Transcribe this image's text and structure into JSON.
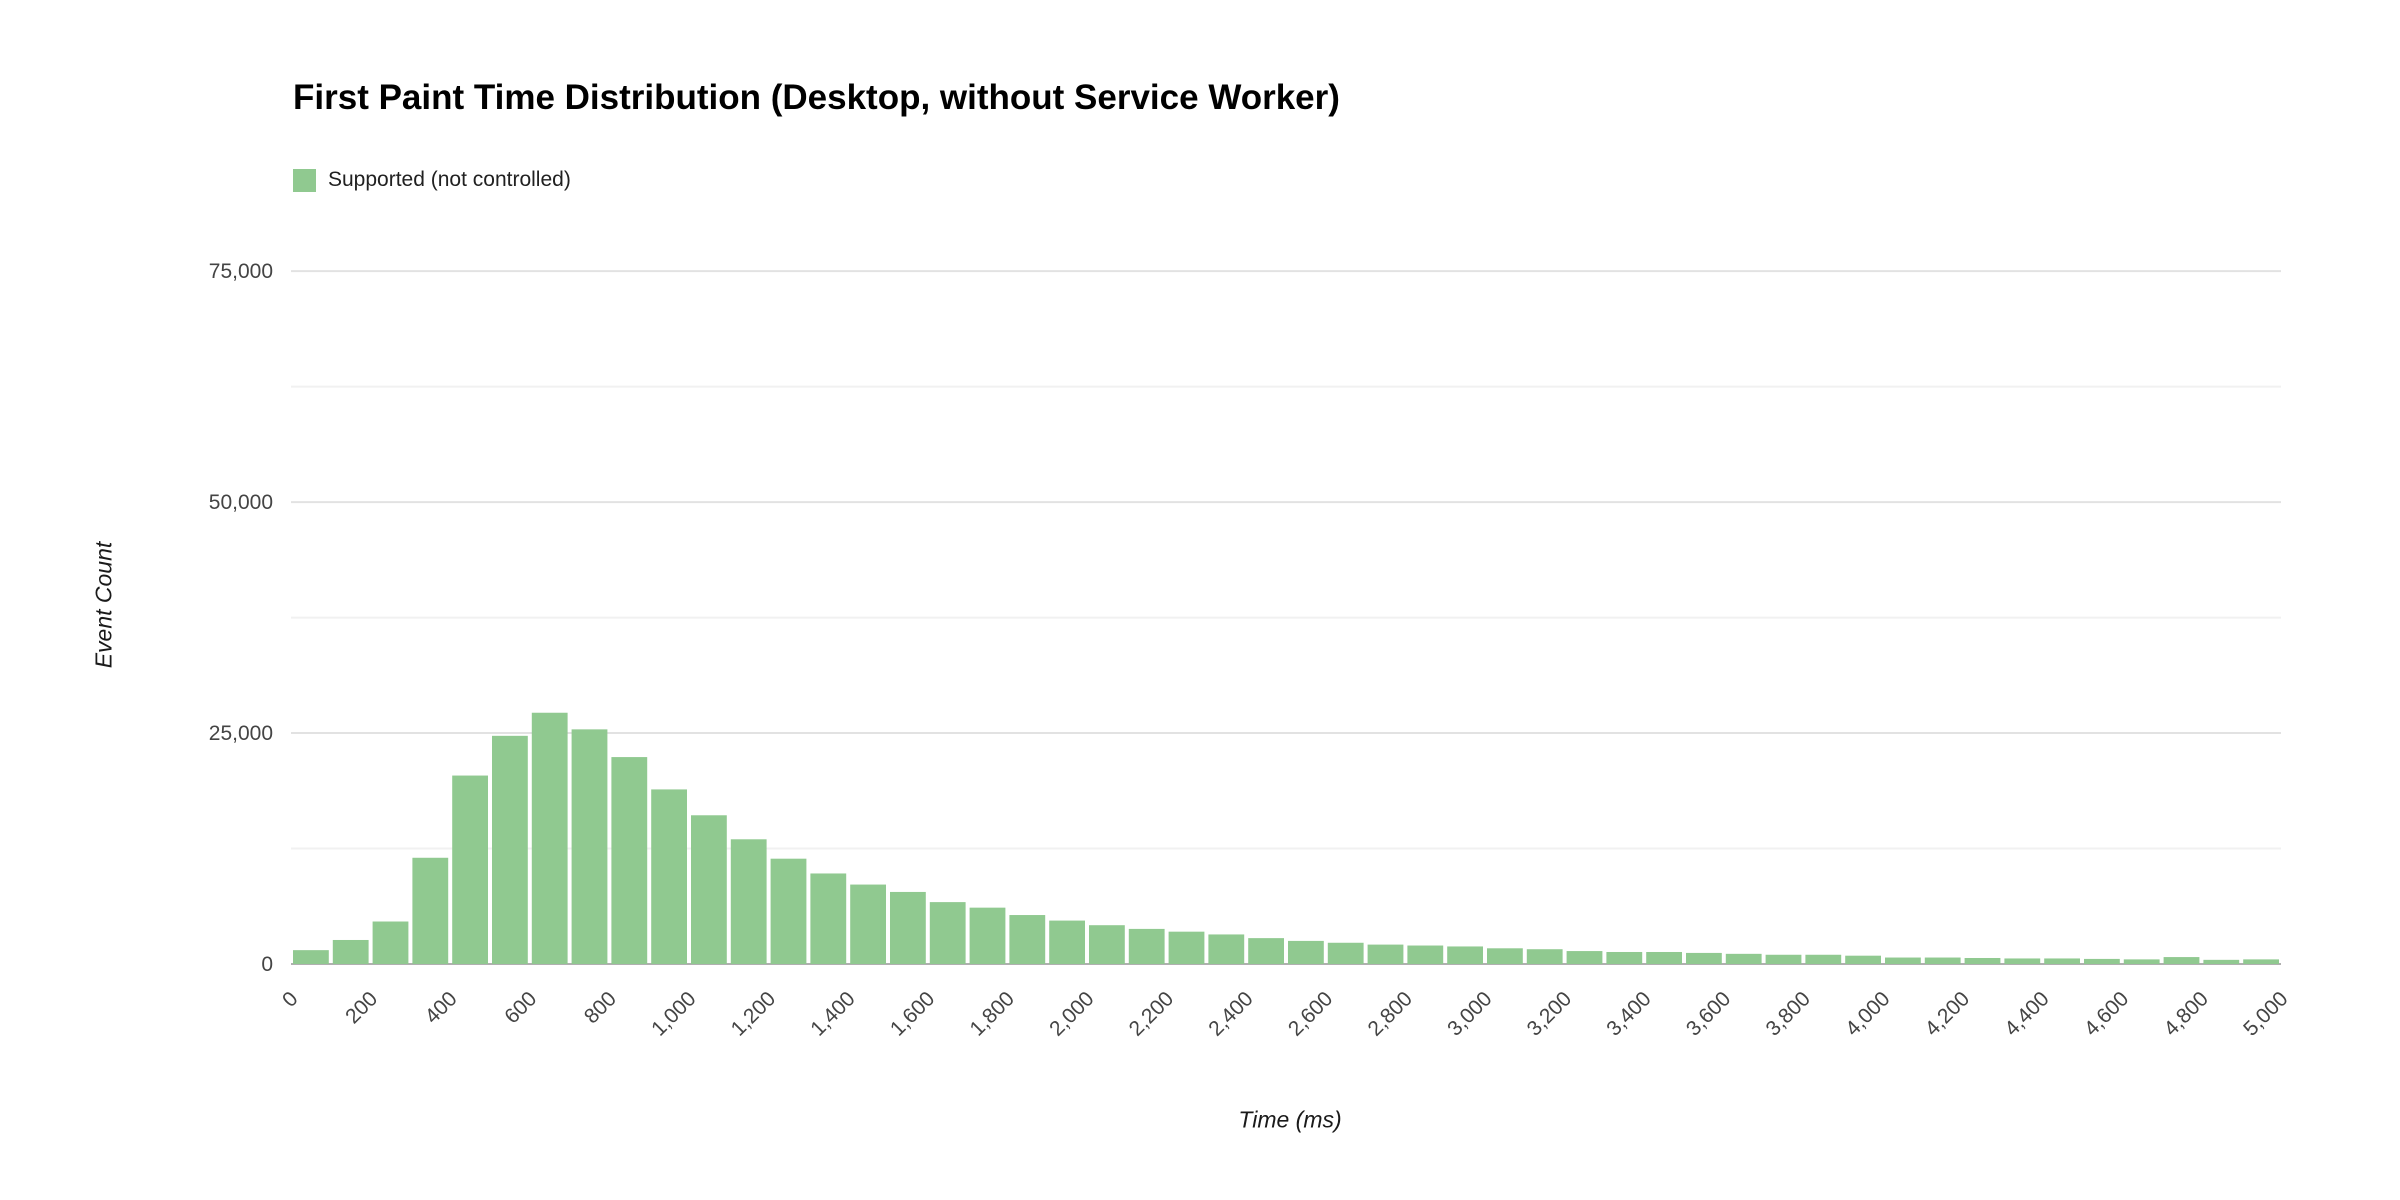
{
  "page": {
    "background": "#ffffff"
  },
  "chart_data": {
    "type": "bar",
    "subtype": "histogram",
    "title": "First Paint Time Distribution (Desktop, without Service Worker)",
    "xlabel": "Time (ms)",
    "ylabel": "Event Count",
    "legend": [
      {
        "label": "Supported (not controlled)",
        "color": "#90c990"
      }
    ],
    "legend_position": "top-left",
    "grid": true,
    "xlim": [
      0,
      5000
    ],
    "ylim": [
      0,
      78700
    ],
    "bin_width_ms": 100,
    "first_bin_start_ms": 0,
    "values": [
      1500,
      2600,
      4600,
      11500,
      20400,
      24700,
      27200,
      25400,
      22400,
      18900,
      16100,
      13500,
      11400,
      9800,
      8600,
      7800,
      6700,
      6100,
      5300,
      4700,
      4200,
      3800,
      3500,
      3200,
      2800,
      2500,
      2300,
      2100,
      2000,
      1900,
      1700,
      1600,
      1400,
      1300,
      1300,
      1200,
      1100,
      1000,
      1000,
      900,
      700,
      700,
      650,
      600,
      600,
      550,
      500,
      750,
      450,
      500
    ],
    "x_tick_values": [
      0,
      200,
      400,
      600,
      800,
      1000,
      1200,
      1400,
      1600,
      1800,
      2000,
      2200,
      2400,
      2600,
      2800,
      3000,
      3200,
      3400,
      3600,
      3800,
      4000,
      4200,
      4400,
      4600,
      4800,
      5000
    ],
    "x_tick_labels": [
      "0",
      "200",
      "400",
      "600",
      "800",
      "1,000",
      "1,200",
      "1,400",
      "1,600",
      "1,800",
      "2,000",
      "2,200",
      "2,400",
      "2,600",
      "2,800",
      "3,000",
      "3,200",
      "3,400",
      "3,600",
      "3,800",
      "4,000",
      "4,200",
      "4,400",
      "4,600",
      "4,800",
      "5,000"
    ],
    "y_tick_values": [
      0,
      25000,
      50000,
      75000
    ],
    "y_tick_labels": [
      "0",
      "25,000",
      "50,000",
      "75,000"
    ],
    "y_minor_tick_values": [
      12500,
      37500,
      62500
    ]
  },
  "colors": {
    "bar_fill": "#90c990",
    "major_gridline": "#e2e2e2",
    "minor_gridline": "#f1f1f1",
    "baseline": "#b0b0b0",
    "tick_label": "#444444",
    "title": "#000000"
  }
}
